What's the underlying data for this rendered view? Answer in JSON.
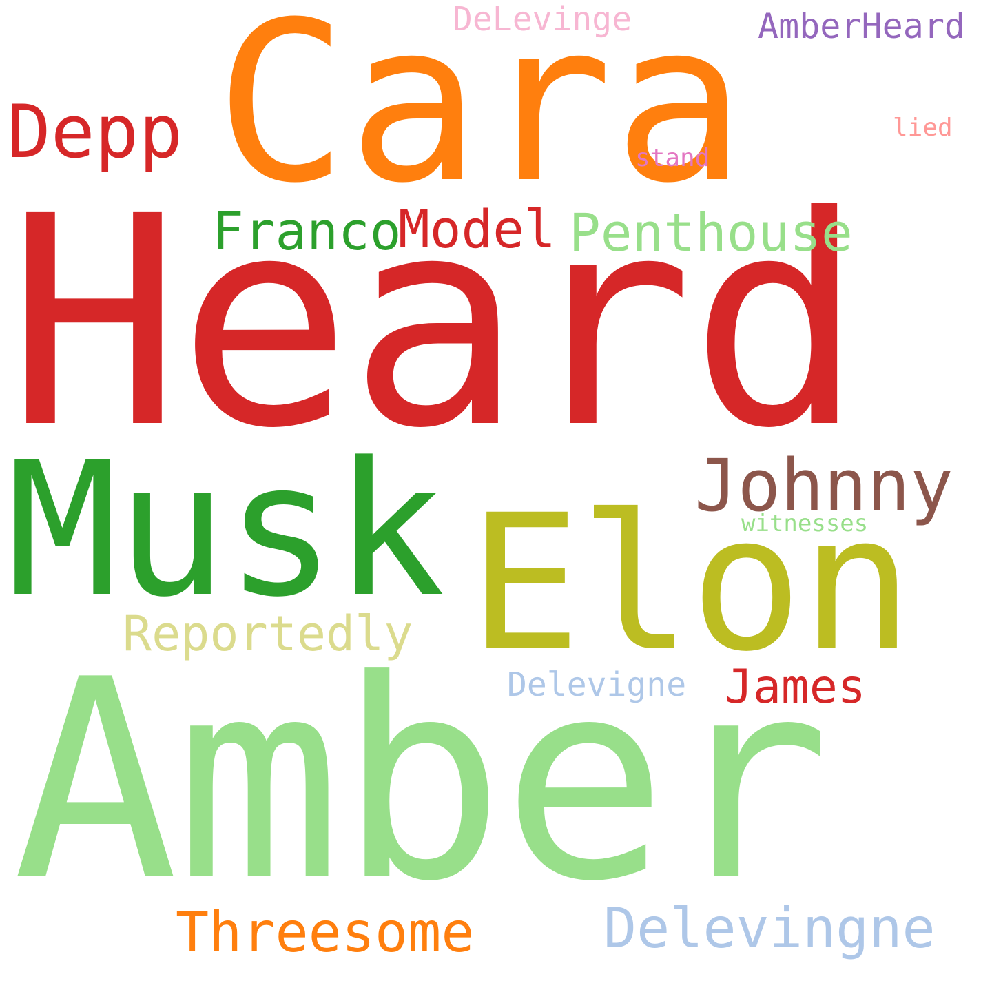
{
  "words": [
    {
      "text": "Heard",
      "color": "#d62728"
    },
    {
      "text": "Amber",
      "color": "#98df8a"
    },
    {
      "text": "Cara",
      "color": "#ff7f0e"
    },
    {
      "text": "Musk",
      "color": "#2ca02c"
    },
    {
      "text": "Elon",
      "color": "#bcbd22"
    },
    {
      "text": "Johnny",
      "color": "#8c564b"
    },
    {
      "text": "Depp",
      "color": "#d62728"
    },
    {
      "text": "Franco",
      "color": "#2ca02c"
    },
    {
      "text": "Model",
      "color": "#d62728"
    },
    {
      "text": "Penthouse",
      "color": "#98df8a"
    },
    {
      "text": "Reportedly",
      "color": "#dbdb8d"
    },
    {
      "text": "James",
      "color": "#d62728"
    },
    {
      "text": "Threesome",
      "color": "#ff7f0e"
    },
    {
      "text": "Delevingne",
      "color": "#aec7e8"
    },
    {
      "text": "Delevigne",
      "color": "#aec7e8"
    },
    {
      "text": "DeLevinge",
      "color": "#f7b6d2"
    },
    {
      "text": "AmberHeard",
      "color": "#9467bd"
    },
    {
      "text": "lied",
      "color": "#ff9896"
    },
    {
      "text": "stand",
      "color": "#e377c2"
    },
    {
      "text": "witnesses",
      "color": "#98df8a"
    }
  ]
}
